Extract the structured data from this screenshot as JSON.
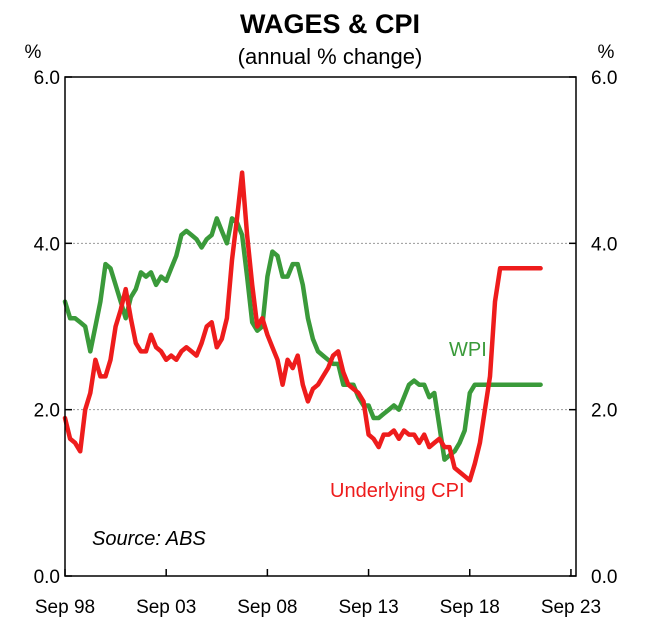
{
  "chart_data": {
    "type": "line",
    "title": "WAGES & CPI",
    "subtitle": "(annual % change)",
    "y_unit_left": "%",
    "y_unit_right": "%",
    "ylim": [
      0,
      6
    ],
    "y_ticks": [
      "0.0",
      "2.0",
      "4.0",
      "6.0"
    ],
    "y_tick_values": [
      0,
      2,
      4,
      6
    ],
    "xlim": [
      1998.67,
      2023.92
    ],
    "x_ticks": [
      "Sep 98",
      "Sep 03",
      "Sep 08",
      "Sep 13",
      "Sep 18",
      "Sep 23"
    ],
    "x_tick_values": [
      1998.67,
      2003.67,
      2008.67,
      2013.67,
      2018.67,
      2023.67
    ],
    "gridlines": [
      2,
      4
    ],
    "source": "Source: ABS",
    "series": [
      {
        "name": "WPI",
        "label": "WPI",
        "color": "#3a9a3a",
        "x": [
          1998.67,
          1998.92,
          1999.17,
          1999.42,
          1999.67,
          1999.92,
          2000.17,
          2000.42,
          2000.67,
          2000.92,
          2001.17,
          2001.42,
          2001.67,
          2001.92,
          2002.17,
          2002.42,
          2002.67,
          2002.92,
          2003.17,
          2003.42,
          2003.67,
          2003.92,
          2004.17,
          2004.42,
          2004.67,
          2004.92,
          2005.17,
          2005.42,
          2005.67,
          2005.92,
          2006.17,
          2006.42,
          2006.67,
          2006.92,
          2007.17,
          2007.42,
          2007.67,
          2007.92,
          2008.17,
          2008.42,
          2008.67,
          2008.92,
          2009.17,
          2009.42,
          2009.67,
          2009.92,
          2010.17,
          2010.42,
          2010.67,
          2010.92,
          2011.17,
          2011.42,
          2011.67,
          2011.92,
          2012.17,
          2012.42,
          2012.67,
          2012.92,
          2013.17,
          2013.42,
          2013.67,
          2013.92,
          2014.17,
          2014.42,
          2014.67,
          2014.92,
          2015.17,
          2015.42,
          2015.67,
          2015.92,
          2016.17,
          2016.42,
          2016.67,
          2016.92,
          2017.17,
          2017.42,
          2017.67,
          2017.92,
          2018.17,
          2018.42,
          2018.67,
          2018.92,
          2019.17,
          2019.42,
          2019.67,
          2019.92,
          2020.17,
          2020.42,
          2020.67,
          2020.92,
          2021.17,
          2021.42,
          2021.67,
          2021.92,
          2022.17
        ],
        "values": [
          3.3,
          3.1,
          3.1,
          3.05,
          3.0,
          2.7,
          3.0,
          3.3,
          3.75,
          3.7,
          3.5,
          3.3,
          3.1,
          3.35,
          3.45,
          3.65,
          3.6,
          3.65,
          3.5,
          3.6,
          3.55,
          3.7,
          3.85,
          4.1,
          4.15,
          4.1,
          4.05,
          3.95,
          4.05,
          4.1,
          4.3,
          4.15,
          4.0,
          4.3,
          4.25,
          4.1,
          3.6,
          3.05,
          2.95,
          3.0,
          3.6,
          3.9,
          3.85,
          3.6,
          3.6,
          3.75,
          3.75,
          3.5,
          3.1,
          2.85,
          2.7,
          2.65,
          2.6,
          2.55,
          2.55,
          2.3,
          2.3,
          2.3,
          2.15,
          2.05,
          2.05,
          1.9,
          1.9,
          1.95,
          2.0,
          2.05,
          2.0,
          2.15,
          2.3,
          2.35,
          2.3,
          2.3,
          2.15,
          2.2,
          1.8,
          1.4,
          1.45,
          1.5,
          1.6,
          1.75,
          2.2,
          2.3,
          2.3,
          2.3,
          2.3,
          2.3,
          2.3,
          2.3,
          2.3,
          2.3,
          2.3,
          2.3,
          2.3,
          2.3,
          2.3
        ]
      },
      {
        "name": "Underlying CPI",
        "label": "Underlying CPI",
        "color": "#ee1c1c",
        "x": [
          1998.67,
          1998.92,
          1999.17,
          1999.42,
          1999.67,
          1999.92,
          2000.17,
          2000.42,
          2000.67,
          2000.92,
          2001.17,
          2001.42,
          2001.67,
          2001.92,
          2002.17,
          2002.42,
          2002.67,
          2002.92,
          2003.17,
          2003.42,
          2003.67,
          2003.92,
          2004.17,
          2004.42,
          2004.67,
          2004.92,
          2005.17,
          2005.42,
          2005.67,
          2005.92,
          2006.17,
          2006.42,
          2006.67,
          2006.92,
          2007.17,
          2007.42,
          2007.67,
          2007.92,
          2008.17,
          2008.42,
          2008.67,
          2008.92,
          2009.17,
          2009.42,
          2009.67,
          2009.92,
          2010.17,
          2010.42,
          2010.67,
          2010.92,
          2011.17,
          2011.42,
          2011.67,
          2011.92,
          2012.17,
          2012.42,
          2012.67,
          2012.92,
          2013.17,
          2013.42,
          2013.67,
          2013.92,
          2014.17,
          2014.42,
          2014.67,
          2014.92,
          2015.17,
          2015.42,
          2015.67,
          2015.92,
          2016.17,
          2016.42,
          2016.67,
          2016.92,
          2017.17,
          2017.42,
          2017.67,
          2017.92,
          2018.17,
          2018.42,
          2018.67,
          2018.92,
          2019.17,
          2019.42,
          2019.67,
          2019.92,
          2020.17,
          2020.42,
          2020.67,
          2020.92,
          2021.17,
          2021.42,
          2021.67,
          2021.92,
          2022.17
        ],
        "values": [
          1.9,
          1.65,
          1.6,
          1.5,
          2.0,
          2.2,
          2.6,
          2.4,
          2.4,
          2.6,
          3.0,
          3.2,
          3.45,
          3.1,
          2.8,
          2.7,
          2.7,
          2.9,
          2.75,
          2.7,
          2.6,
          2.65,
          2.6,
          2.7,
          2.75,
          2.7,
          2.65,
          2.8,
          3.0,
          3.05,
          2.75,
          2.85,
          3.1,
          3.8,
          4.3,
          4.85,
          4.1,
          3.5,
          3.0,
          3.1,
          2.9,
          2.75,
          2.6,
          2.3,
          2.6,
          2.5,
          2.65,
          2.3,
          2.1,
          2.25,
          2.3,
          2.4,
          2.5,
          2.65,
          2.7,
          2.45,
          2.3,
          2.25,
          2.2,
          2.1,
          1.7,
          1.65,
          1.55,
          1.7,
          1.7,
          1.75,
          1.65,
          1.75,
          1.7,
          1.7,
          1.6,
          1.7,
          1.55,
          1.6,
          1.65,
          1.55,
          1.55,
          1.3,
          1.25,
          1.2,
          1.15,
          1.35,
          1.6,
          2.0,
          2.4,
          3.3,
          3.7,
          3.7,
          3.7,
          3.7,
          3.7,
          3.7,
          3.7,
          3.7,
          3.7
        ]
      }
    ]
  }
}
